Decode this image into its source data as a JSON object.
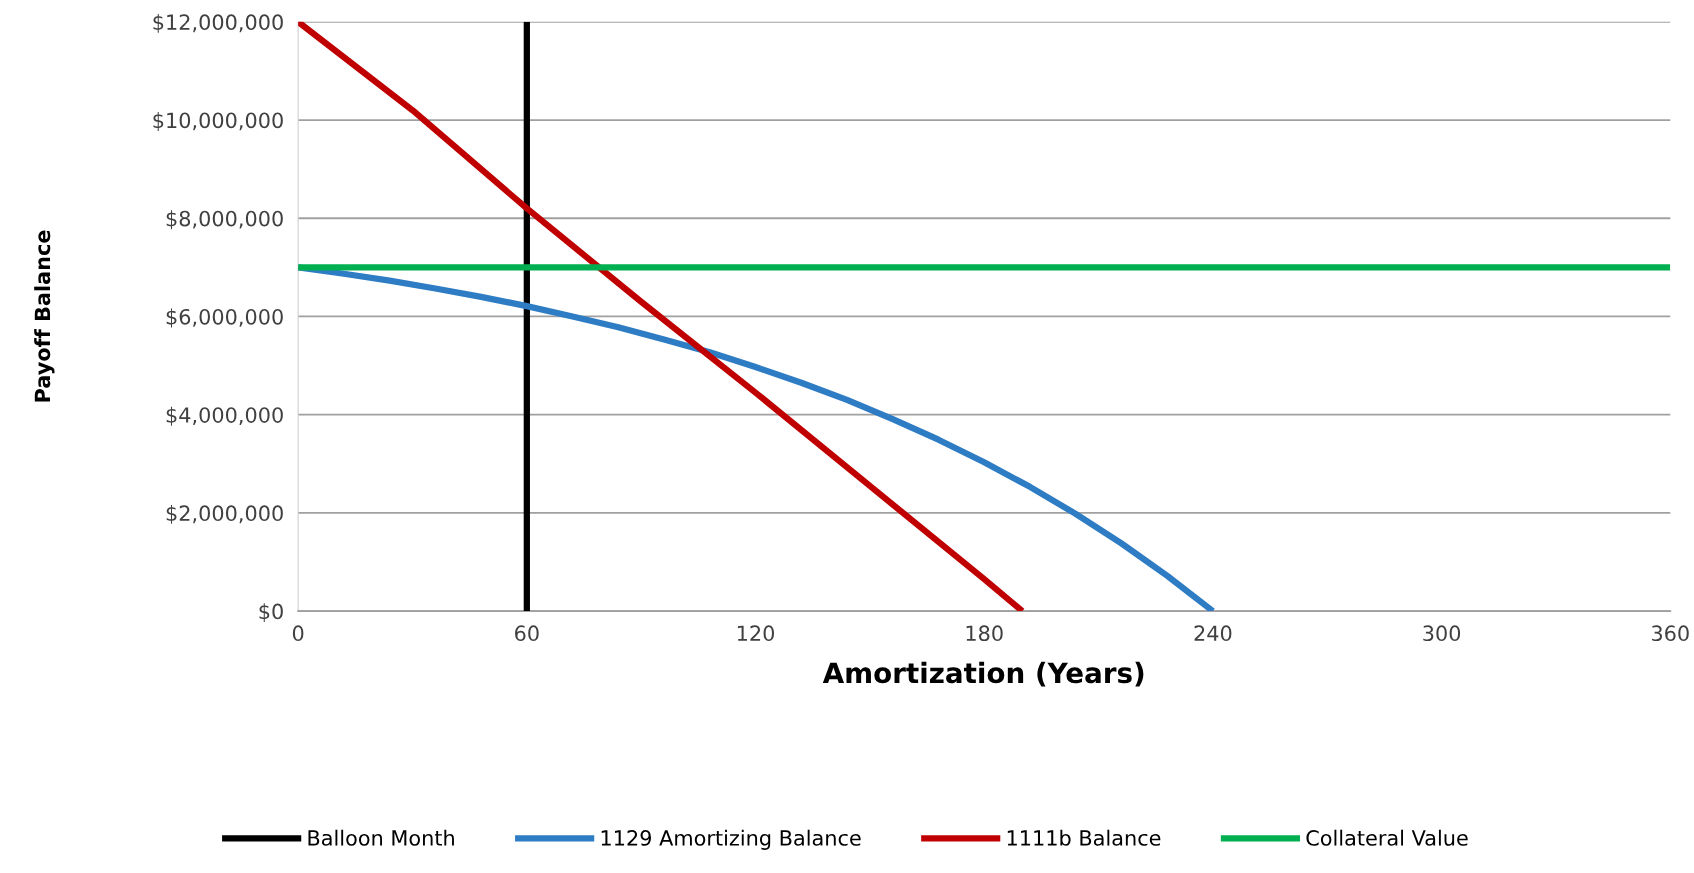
{
  "chart_data": {
    "type": "line",
    "xlabel": "Amortization (Years)",
    "ylabel": "Payoff Balance",
    "xlim": [
      0,
      360
    ],
    "xticks": [
      0,
      60,
      120,
      180,
      240,
      300,
      360
    ],
    "ylim": [
      0,
      12000000
    ],
    "yticks": [
      {
        "value": 0,
        "label": "$0"
      },
      {
        "value": 2000000,
        "label": "$2,000,000"
      },
      {
        "value": 4000000,
        "label": "$4,000,000"
      },
      {
        "value": 6000000,
        "label": "$6,000,000"
      },
      {
        "value": 8000000,
        "label": "$8,000,000"
      },
      {
        "value": 10000000,
        "label": "$10,000,000"
      },
      {
        "value": 12000000,
        "label": "$12,000,000"
      }
    ],
    "grid": "y",
    "legend": "bottom",
    "marker": "none",
    "line_style": "solid",
    "series": [
      {
        "name": "Balloon Month",
        "color": "#000000",
        "x": [
          60,
          60
        ],
        "values": [
          0,
          12000000
        ]
      },
      {
        "name": "1129 Amortizing Balance",
        "color": "#2e7cc4",
        "x": [
          0,
          12,
          24,
          36,
          48,
          60,
          72,
          84,
          96,
          108,
          120,
          132,
          144,
          156,
          168,
          180,
          192,
          204,
          216,
          228,
          240
        ],
        "values": [
          7000000,
          6870000,
          6730000,
          6570000,
          6400000,
          6210000,
          6000000,
          5780000,
          5530000,
          5270000,
          4970000,
          4650000,
          4300000,
          3910000,
          3490000,
          3030000,
          2530000,
          1980000,
          1380000,
          720000,
          0
        ]
      },
      {
        "name": "1111b Balance",
        "color": "#c00000",
        "x": [
          0,
          30,
          60,
          90,
          120,
          150,
          180,
          190
        ],
        "values": [
          12000000,
          10200000,
          8200000,
          6300000,
          4450000,
          2550000,
          650000,
          0
        ]
      },
      {
        "name": "Collateral Value",
        "color": "#00b050",
        "x": [
          0,
          360
        ],
        "values": [
          7000000,
          7000000
        ]
      }
    ]
  }
}
